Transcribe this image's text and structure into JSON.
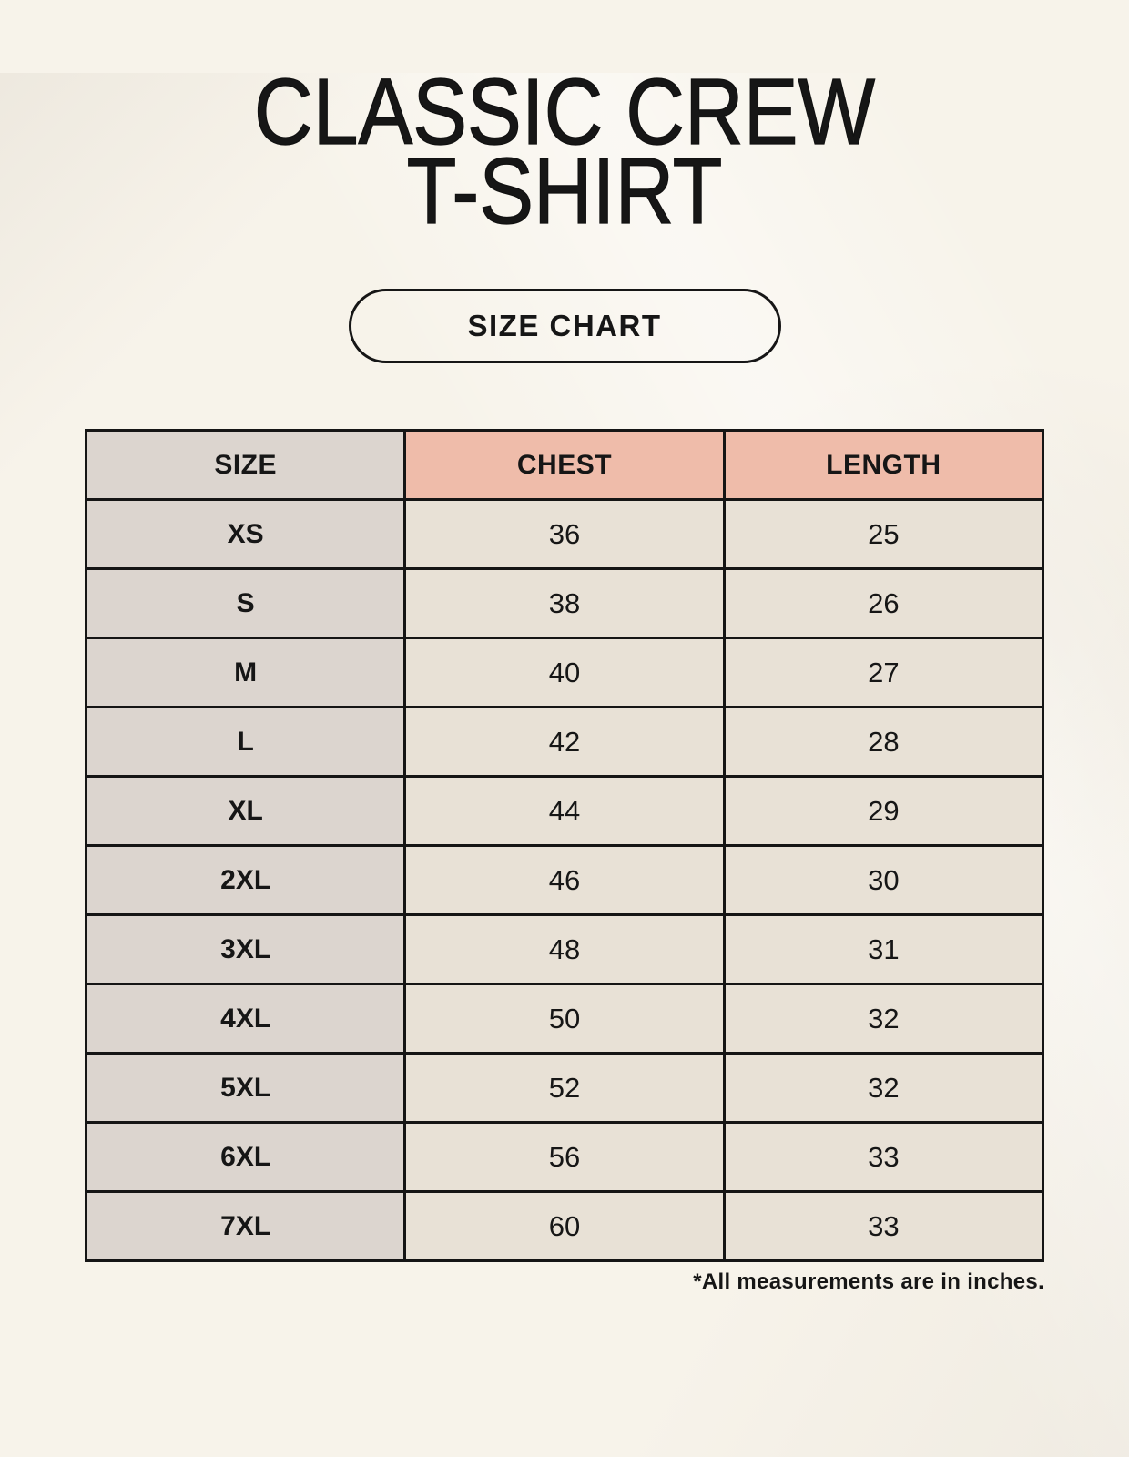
{
  "page": {
    "title_line1": "CLASSIC CREW",
    "title_line2": "T-SHIRT",
    "badge_label": "SIZE CHART",
    "footnote": "*All measurements are in inches."
  },
  "colors": {
    "page_background": "#f7f3ea",
    "header_accent": "#efbcaa",
    "size_column": "#dcd5cf",
    "data_cell": "#e8e1d6",
    "border": "#151515",
    "text": "#161616"
  },
  "chart_data": {
    "type": "table",
    "columns": [
      "SIZE",
      "CHEST",
      "LENGTH"
    ],
    "rows": [
      {
        "size": "XS",
        "chest": 36,
        "length": 25
      },
      {
        "size": "S",
        "chest": 38,
        "length": 26
      },
      {
        "size": "M",
        "chest": 40,
        "length": 27
      },
      {
        "size": "L",
        "chest": 42,
        "length": 28
      },
      {
        "size": "XL",
        "chest": 44,
        "length": 29
      },
      {
        "size": "2XL",
        "chest": 46,
        "length": 30
      },
      {
        "size": "3XL",
        "chest": 48,
        "length": 31
      },
      {
        "size": "4XL",
        "chest": 50,
        "length": 32
      },
      {
        "size": "5XL",
        "chest": 52,
        "length": 32
      },
      {
        "size": "6XL",
        "chest": 56,
        "length": 33
      },
      {
        "size": "7XL",
        "chest": 60,
        "length": 33
      }
    ],
    "unit_note": "*All measurements are in inches."
  }
}
